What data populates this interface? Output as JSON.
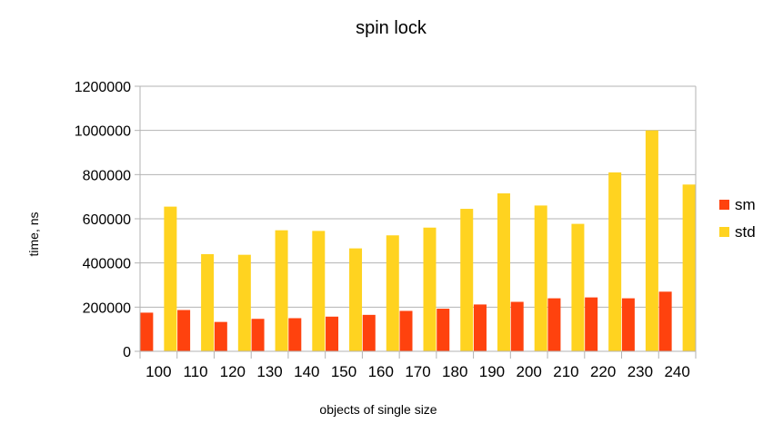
{
  "chart_data": {
    "type": "bar",
    "title": "spin lock",
    "xlabel": "objects of single size",
    "ylabel": "time, ns",
    "categories": [
      "100",
      "110",
      "120",
      "130",
      "140",
      "150",
      "160",
      "170",
      "180",
      "190",
      "200",
      "210",
      "220",
      "230",
      "240"
    ],
    "series": [
      {
        "name": "sm",
        "color": "#ff420e",
        "values": [
          175000,
          187000,
          133000,
          147000,
          150000,
          157000,
          165000,
          183000,
          193000,
          212000,
          224000,
          240000,
          244000,
          240000,
          270000
        ]
      },
      {
        "name": "std",
        "color": "#ffd320",
        "values": [
          655000,
          440000,
          437000,
          548000,
          545000,
          466000,
          525000,
          560000,
          645000,
          715000,
          660000,
          577000,
          810000,
          1000000,
          755000
        ]
      }
    ],
    "ylim": [
      0,
      1200000
    ],
    "yticks": [
      "0",
      "200000",
      "400000",
      "600000",
      "800000",
      "1000000",
      "1200000"
    ],
    "grid": true,
    "legend_position": "right"
  }
}
